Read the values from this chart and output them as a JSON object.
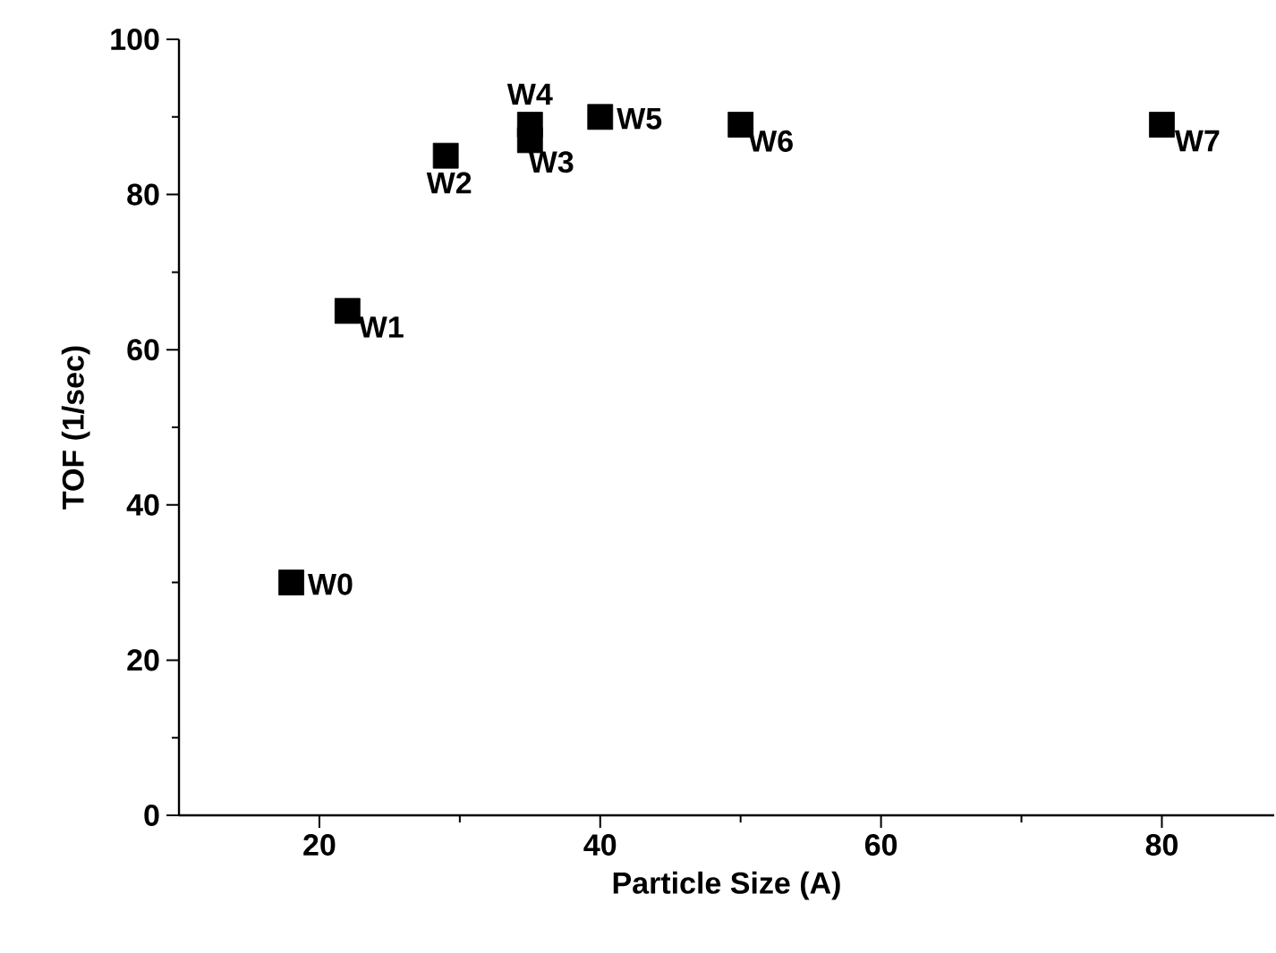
{
  "chart_data": {
    "type": "scatter",
    "xlabel": "Particle Size (A)",
    "ylabel": "TOF (1/sec)",
    "x": [
      18,
      22,
      29,
      35,
      35,
      40,
      50,
      80
    ],
    "series": [
      {
        "color": "#000000",
        "values": [
          30,
          65,
          85,
          87,
          89,
          90,
          89,
          89
        ]
      }
    ],
    "marker": "square",
    "xlim": [
      10,
      88
    ],
    "ylim": [
      0,
      100
    ],
    "xticks": [
      20,
      40,
      60,
      80
    ],
    "yticks": [
      0,
      20,
      40,
      60,
      80,
      100
    ],
    "annotations": [
      {
        "text": "W0",
        "x": 18,
        "y": 30
      },
      {
        "text": "W1",
        "x": 22,
        "y": 65
      },
      {
        "text": "W2",
        "x": 29,
        "y": 85
      },
      {
        "text": "W3",
        "x": 35,
        "y": 87
      },
      {
        "text": "W4",
        "x": 35,
        "y": 89
      },
      {
        "text": "W5",
        "x": 40,
        "y": 90
      },
      {
        "text": "W6",
        "x": 50,
        "y": 89
      },
      {
        "text": "W7",
        "x": 80,
        "y": 89
      }
    ]
  }
}
